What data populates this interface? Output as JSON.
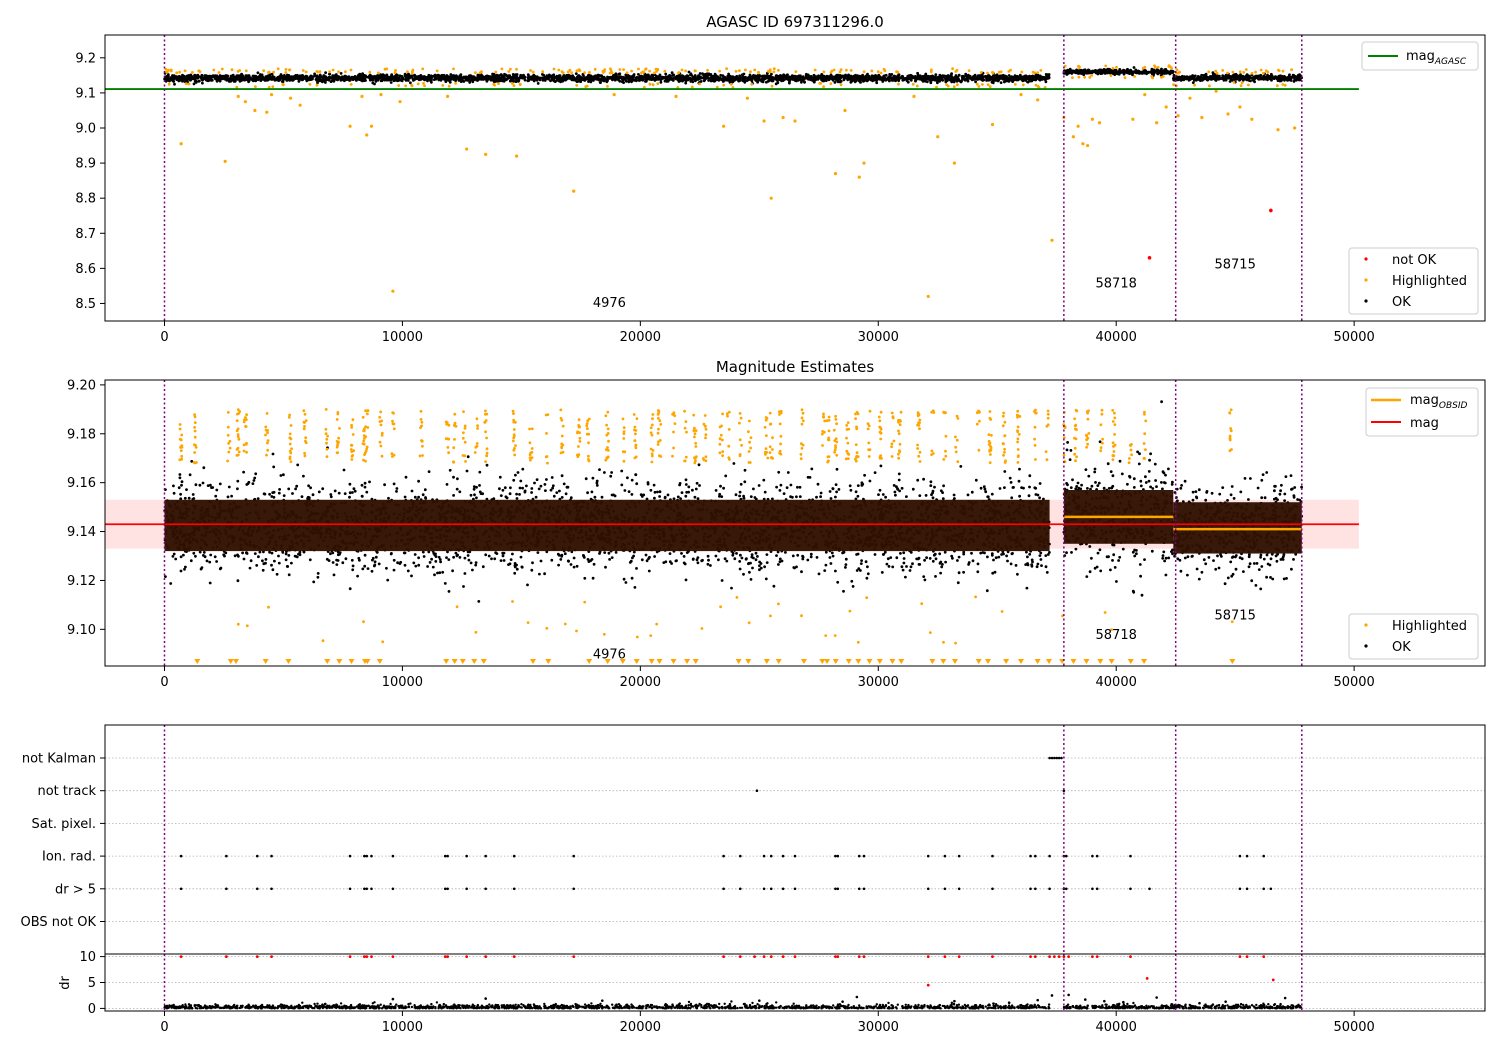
{
  "colors": {
    "ok": "#000000",
    "highlighted": "#ffa500",
    "not_ok": "#ff0000",
    "agasc_line": "#008000",
    "obsid_line": "#ffa500",
    "mag_line": "#ff0000",
    "mag_band": "#ffc0c0",
    "obs_box": "#301100",
    "obs_divider": "#800080",
    "grid": "#b0b0b0"
  },
  "chart_data": [
    {
      "type": "scatter",
      "title": "AGASC ID 697311296.0",
      "xlim": [
        -2500,
        55500
      ],
      "ylim": [
        8.45,
        9.265
      ],
      "xticks": [
        0,
        10000,
        20000,
        30000,
        40000,
        50000
      ],
      "yticks": [
        8.5,
        8.6,
        8.7,
        8.8,
        8.9,
        9.0,
        9.1,
        9.2
      ],
      "observations": [
        {
          "start": 0,
          "end": 37200,
          "center": 9.142,
          "spread": 0.009
        },
        {
          "start": 37800,
          "end": 42400,
          "center": 9.16,
          "spread": 0.006
        },
        {
          "start": 42400,
          "end": 47800,
          "center": 9.143,
          "spread": 0.008
        }
      ],
      "obs_boundaries": [
        0,
        37800,
        42500,
        47800
      ],
      "obsid_labels": [
        {
          "text": "4976",
          "x": 18700,
          "y": 8.49
        },
        {
          "text": "58718",
          "x": 40000,
          "y": 8.545
        },
        {
          "text": "58715",
          "x": 45000,
          "y": 8.6
        }
      ],
      "agasc_mag": {
        "value": 9.111,
        "x_range": [
          -2500,
          50200
        ]
      },
      "highlighted_points": [
        [
          700,
          8.955
        ],
        [
          2550,
          8.905
        ],
        [
          3100,
          9.09
        ],
        [
          3400,
          9.075
        ],
        [
          3800,
          9.05
        ],
        [
          4300,
          9.045
        ],
        [
          4500,
          9.095
        ],
        [
          5300,
          9.085
        ],
        [
          5700,
          9.065
        ],
        [
          7800,
          9.005
        ],
        [
          8300,
          9.09
        ],
        [
          8500,
          8.98
        ],
        [
          8700,
          9.005
        ],
        [
          9100,
          9.095
        ],
        [
          9600,
          8.535
        ],
        [
          9900,
          9.075
        ],
        [
          11900,
          9.09
        ],
        [
          12700,
          8.94
        ],
        [
          13500,
          8.925
        ],
        [
          14800,
          8.92
        ],
        [
          17200,
          8.82
        ],
        [
          18900,
          9.095
        ],
        [
          21500,
          9.09
        ],
        [
          23500,
          9.005
        ],
        [
          24500,
          9.085
        ],
        [
          25200,
          9.02
        ],
        [
          25500,
          8.8
        ],
        [
          26000,
          9.03
        ],
        [
          26500,
          9.02
        ],
        [
          28200,
          8.87
        ],
        [
          28600,
          9.05
        ],
        [
          29200,
          8.86
        ],
        [
          29400,
          8.9
        ],
        [
          31500,
          9.09
        ],
        [
          32100,
          8.52
        ],
        [
          32500,
          8.975
        ],
        [
          33200,
          8.9
        ],
        [
          34800,
          9.01
        ],
        [
          36000,
          9.095
        ],
        [
          36700,
          9.08
        ],
        [
          37300,
          8.68
        ],
        [
          37800,
          9.03
        ],
        [
          38200,
          8.975
        ],
        [
          38400,
          9.005
        ],
        [
          38600,
          8.955
        ],
        [
          38800,
          8.95
        ],
        [
          39000,
          9.025
        ],
        [
          39300,
          9.015
        ],
        [
          40700,
          9.025
        ],
        [
          41200,
          9.095
        ],
        [
          41700,
          9.015
        ],
        [
          42100,
          9.06
        ],
        [
          42600,
          9.035
        ],
        [
          43100,
          9.085
        ],
        [
          43600,
          9.03
        ],
        [
          44200,
          9.105
        ],
        [
          44700,
          9.04
        ],
        [
          45200,
          9.06
        ],
        [
          45700,
          9.025
        ],
        [
          46800,
          8.995
        ],
        [
          47500,
          9.0
        ]
      ],
      "not_ok_points": [
        [
          41400,
          8.63
        ],
        [
          46500,
          8.765
        ]
      ],
      "series_names": [
        "not OK",
        "Highlighted",
        "OK"
      ],
      "legend_lines": [
        "mag",
        "AGASC"
      ]
    },
    {
      "type": "scatter",
      "title": "Magnitude Estimates",
      "xlim": [
        -2500,
        55500
      ],
      "ylim": [
        9.085,
        9.202
      ],
      "xticks": [
        0,
        10000,
        20000,
        30000,
        40000,
        50000
      ],
      "yticks": [
        9.1,
        9.12,
        9.14,
        9.16,
        9.18,
        9.2
      ],
      "observations": [
        {
          "start": 0,
          "end": 37200,
          "center": 9.142,
          "spread": 0.009,
          "box": [
            9.132,
            9.153
          ]
        },
        {
          "start": 37800,
          "end": 42400,
          "center": 9.146,
          "spread": 0.011,
          "box": [
            9.135,
            9.157
          ]
        },
        {
          "start": 42400,
          "end": 47800,
          "center": 9.141,
          "spread": 0.009,
          "box": [
            9.131,
            9.152
          ]
        }
      ],
      "obsid_mags": [
        {
          "start": 37800,
          "end": 42400,
          "value": 9.146
        },
        {
          "start": 42400,
          "end": 47800,
          "value": 9.141
        }
      ],
      "mag": {
        "value": 9.143,
        "band": [
          9.133,
          9.153
        ],
        "x_range": [
          -2500,
          50200
        ]
      },
      "obs_boundaries": [
        0,
        37800,
        42500,
        47800
      ],
      "obsid_labels": [
        {
          "text": "4976",
          "x": 18700,
          "y": 9.088
        },
        {
          "text": "58718",
          "x": 40000,
          "y": 9.096
        },
        {
          "text": "58715",
          "x": 45000,
          "y": 9.104
        }
      ],
      "highlight_columns": [
        700,
        1300,
        2700,
        3100,
        3400,
        4300,
        5300,
        5900,
        6800,
        7300,
        7900,
        8400,
        8500,
        9100,
        9600,
        10800,
        11900,
        12200,
        12600,
        13100,
        13500,
        14700,
        15400,
        16100,
        16700,
        17400,
        17800,
        18600,
        19300,
        19800,
        20500,
        20800,
        21400,
        21900,
        22300,
        22700,
        23400,
        23700,
        24200,
        24600,
        25300,
        25500,
        25900,
        26800,
        27700,
        27900,
        28200,
        28700,
        29100,
        29600,
        30100,
        30600,
        30900,
        31700,
        32300,
        32800,
        33300,
        34200,
        34700,
        35300,
        35900,
        36600,
        37100,
        37800,
        38300,
        38800,
        39400,
        39900,
        40600,
        41200,
        44800
      ],
      "series_names": [
        "Highlighted",
        "OK"
      ],
      "legend_lines": [
        "mag",
        "OBSID",
        "mag"
      ]
    },
    {
      "type": "scatter",
      "title": "",
      "xlim": [
        -2500,
        55500
      ],
      "xticks": [
        0,
        10000,
        20000,
        30000,
        40000,
        50000
      ],
      "flag_categories": [
        "not Kalman",
        "not track",
        "Sat. pixel.",
        "Ion. rad.",
        "dr > 5",
        "OBS not OK"
      ],
      "flag_events": {
        "not Kalman": [
          37200,
          37300,
          37400,
          37500,
          37600,
          37700
        ],
        "not track": [
          24900,
          37800
        ],
        "Sat. pixel.": [],
        "Ion. rad.": [
          700,
          2600,
          3900,
          4500,
          7800,
          8400,
          8500,
          8700,
          9600,
          11800,
          11900,
          12700,
          13500,
          14700,
          17200,
          23500,
          24200,
          25200,
          25500,
          26000,
          26500,
          28200,
          28300,
          29200,
          29400,
          32100,
          32800,
          33400,
          34800,
          36400,
          36600,
          37200,
          37800,
          37900,
          39000,
          39200,
          40600,
          45200,
          45500,
          46200
        ],
        "dr > 5": [
          700,
          2600,
          3900,
          4500,
          7800,
          8400,
          8500,
          8700,
          9600,
          11800,
          11900,
          12700,
          13500,
          14700,
          17200,
          23500,
          24200,
          25200,
          25500,
          26000,
          26500,
          28200,
          28300,
          29200,
          29400,
          32100,
          32800,
          33400,
          34800,
          36400,
          36600,
          37200,
          37800,
          37900,
          39000,
          39200,
          40600,
          41400,
          45200,
          45500,
          46200,
          46500
        ],
        "OBS not OK": []
      },
      "ylabel": "dr",
      "dr_ylim": [
        -0.5,
        10.5
      ],
      "dr_yticks": [
        0,
        5,
        10
      ],
      "dr_high_points": [
        [
          700,
          10
        ],
        [
          2600,
          10
        ],
        [
          3900,
          10
        ],
        [
          4500,
          10
        ],
        [
          7800,
          10
        ],
        [
          8400,
          10
        ],
        [
          8500,
          10
        ],
        [
          8700,
          10
        ],
        [
          9600,
          10
        ],
        [
          11800,
          10
        ],
        [
          11900,
          10
        ],
        [
          12700,
          10
        ],
        [
          13500,
          10
        ],
        [
          14700,
          10
        ],
        [
          17200,
          10
        ],
        [
          23500,
          10
        ],
        [
          24200,
          10
        ],
        [
          24800,
          10
        ],
        [
          25200,
          10
        ],
        [
          25500,
          10
        ],
        [
          26000,
          10
        ],
        [
          26500,
          10
        ],
        [
          28200,
          10
        ],
        [
          28300,
          10
        ],
        [
          29200,
          10
        ],
        [
          29400,
          10
        ],
        [
          32100,
          10
        ],
        [
          32800,
          10
        ],
        [
          33400,
          10
        ],
        [
          34800,
          10
        ],
        [
          36400,
          10
        ],
        [
          36600,
          10
        ],
        [
          37200,
          10
        ],
        [
          37400,
          10
        ],
        [
          37600,
          10
        ],
        [
          37800,
          10
        ],
        [
          38000,
          10
        ],
        [
          39000,
          10
        ],
        [
          39200,
          10
        ],
        [
          40600,
          10
        ],
        [
          45200,
          10
        ],
        [
          45500,
          10
        ],
        [
          46200,
          10
        ],
        [
          32100,
          4.5
        ],
        [
          41300,
          5.8
        ],
        [
          46600,
          5.5
        ]
      ],
      "dr_mid_points": [
        [
          9600,
          1.8
        ],
        [
          13500,
          1.9
        ],
        [
          18400,
          1.5
        ],
        [
          25000,
          1.5
        ],
        [
          28500,
          1.3
        ],
        [
          29100,
          2.2
        ],
        [
          33200,
          1.4
        ],
        [
          35500,
          1.1
        ],
        [
          36700,
          1.6
        ],
        [
          37300,
          2.5
        ],
        [
          38000,
          2.6
        ],
        [
          38700,
          1.7
        ],
        [
          39500,
          1.4
        ],
        [
          40300,
          1.2
        ],
        [
          41700,
          2.1
        ],
        [
          43500,
          1.0
        ],
        [
          44600,
          1.3
        ],
        [
          47100,
          2.0
        ]
      ]
    }
  ]
}
